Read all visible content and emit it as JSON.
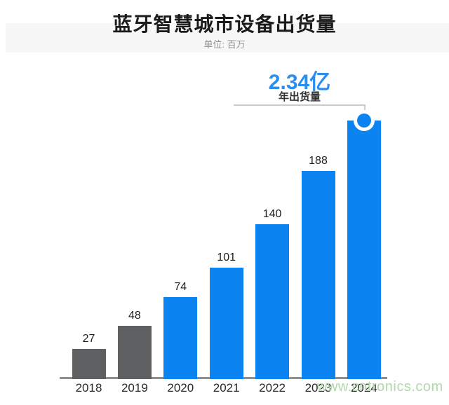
{
  "header": {
    "title": "蓝牙智慧城市设备出货量",
    "subtitle": "单位: 百万"
  },
  "annotation": {
    "value": "2.34亿",
    "label": "年出货量"
  },
  "watermark": {
    "text": "www.cntronics.com"
  },
  "colors": {
    "bar_gray": "#5f6062",
    "bar_blue": "#0b84f2",
    "accent_blue": "#2b8df0",
    "callout_line": "#cccccc",
    "axis": "#8f8f8f",
    "watermark_green": "#b2d9ac",
    "header_band": "#f7f7f7"
  },
  "chart_data": {
    "type": "bar",
    "title": "蓝牙智慧城市设备出货量",
    "subtitle": "单位: 百万",
    "unit": "百万",
    "categories": [
      "2018",
      "2019",
      "2020",
      "2021",
      "2022",
      "2023",
      "2024"
    ],
    "values": [
      27,
      48,
      74,
      101,
      140,
      188,
      234
    ],
    "bar_labels": [
      "27",
      "48",
      "74",
      "101",
      "140",
      "188",
      ""
    ],
    "bar_colors": [
      "#5f6062",
      "#5f6062",
      "#0b84f2",
      "#0b84f2",
      "#0b84f2",
      "#0b84f2",
      "#0b84f2"
    ],
    "highlight_index": 6,
    "annotation": {
      "value": "2.34亿",
      "label": "年出货量"
    },
    "ylim": [
      0,
      240
    ],
    "grid": false,
    "legend": false
  }
}
